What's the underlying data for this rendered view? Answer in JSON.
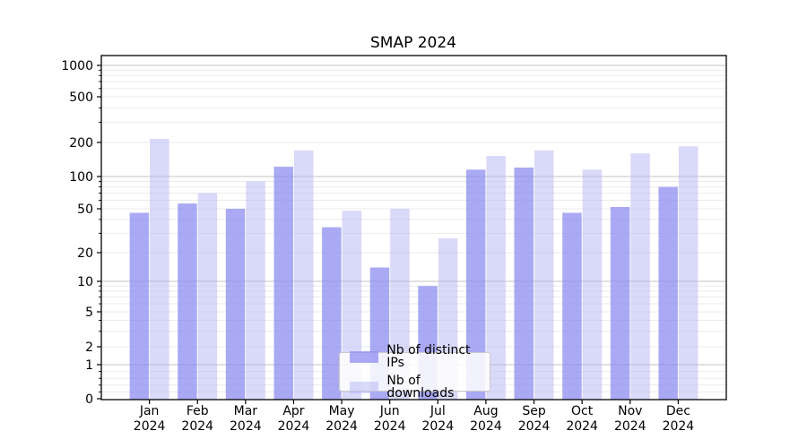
{
  "chart_data": {
    "type": "bar",
    "title": "SMAP 2024",
    "categories": [
      "Jan",
      "Feb",
      "Mar",
      "Apr",
      "May",
      "Jun",
      "Jul",
      "Aug",
      "Sep",
      "Oct",
      "Nov",
      "Dec"
    ],
    "category_year": "2024",
    "series": [
      {
        "name": "Nb of distinct IPs",
        "color_fill": "rgba(142,142,240,0.75)",
        "color_apparent": "#a9a9f3",
        "values": [
          46,
          56,
          50,
          122,
          34,
          14,
          9,
          115,
          120,
          46,
          52,
          80
        ]
      },
      {
        "name": "Nb of downloads",
        "color_fill": "rgba(180,180,243,0.5)",
        "color_apparent": "#d9d9f9",
        "values": [
          215,
          70,
          90,
          170,
          48,
          50,
          27,
          152,
          170,
          115,
          160,
          185
        ]
      }
    ],
    "yscale": "symlog",
    "y_ticks": [
      0,
      1,
      2,
      5,
      10,
      20,
      50,
      100,
      200,
      500,
      1000
    ],
    "ylim": [
      0,
      1200
    ],
    "xlabel": "",
    "ylabel": "",
    "grid": "both",
    "legend_position": "lower center",
    "colors": {
      "grid_minor": "#ebebeb",
      "grid_major": "#c3c3c3",
      "axis": "#000000",
      "text": "#000000",
      "legend_border": "#cccccc"
    }
  }
}
